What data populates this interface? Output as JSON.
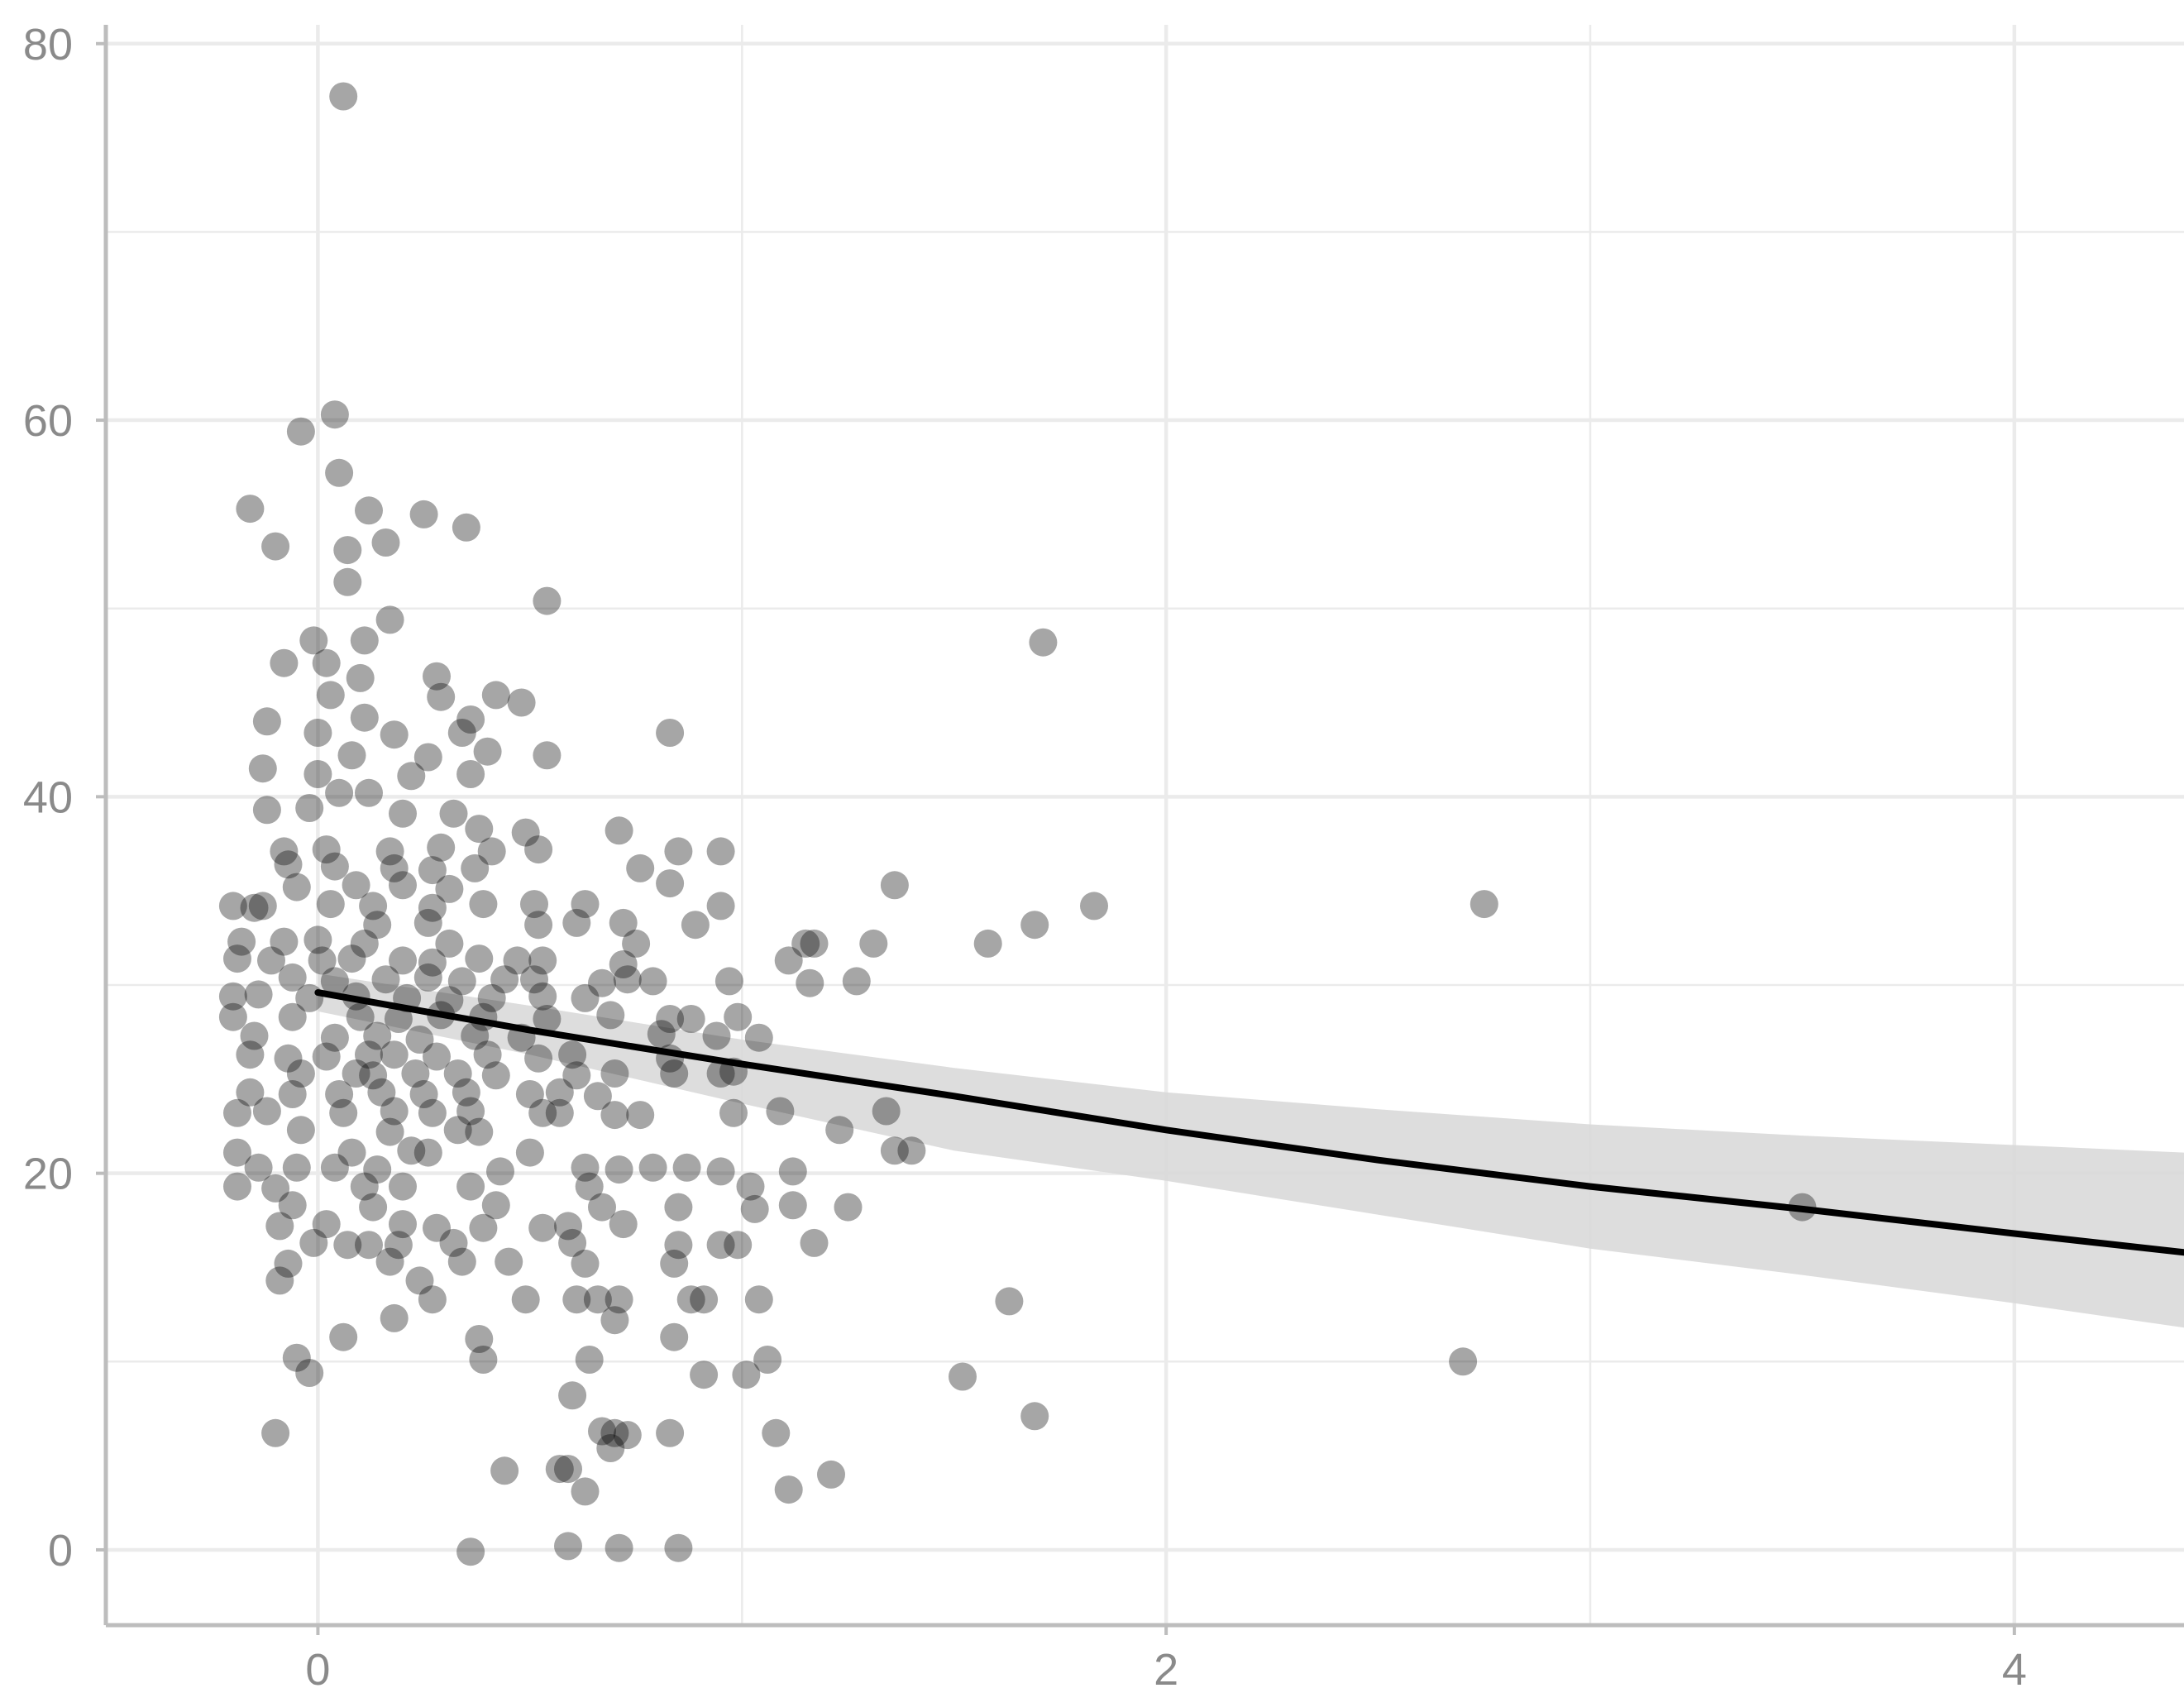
{
  "chart_data": {
    "type": "scatter",
    "title": "",
    "xlabel": "",
    "ylabel": "",
    "xlim": [
      -0.5,
      4.4
    ],
    "ylim": [
      -4,
      81
    ],
    "x_ticks": [
      0,
      2,
      4
    ],
    "x_tick_labels": [
      "0",
      "2",
      "4"
    ],
    "y_ticks": [
      0,
      20,
      40,
      60,
      80
    ],
    "y_tick_labels": [
      "0",
      "20",
      "40",
      "60",
      "80"
    ],
    "x_minor_gridlines": [
      1,
      3
    ],
    "y_minor_gridlines": [
      10,
      30,
      50,
      70
    ],
    "grid": true,
    "legend": "none",
    "colors": {
      "points": "#000000",
      "point_opacity": 0.35,
      "fit_line": "#000000",
      "confidence_band": "#d9d9d9",
      "grid": "#ebebeb",
      "axis": "#bdbdbd",
      "tick_label": "#8a8a8a"
    },
    "fit_line": {
      "type": "smooth",
      "x": [
        0,
        0.5,
        1,
        1.5,
        2,
        2.5,
        3,
        3.5,
        4,
        4.4
      ],
      "y": [
        29.6,
        27.6,
        25.8,
        24.1,
        22.3,
        20.7,
        19.3,
        18.1,
        16.8,
        15.8
      ]
    },
    "confidence_band": {
      "x": [
        0,
        0.5,
        1,
        1.5,
        2,
        2.5,
        3,
        3.5,
        4,
        4.4
      ],
      "lower": [
        28.6,
        26.3,
        23.7,
        21.2,
        19.6,
        17.8,
        16.0,
        14.6,
        13.1,
        11.8
      ],
      "upper": [
        30.6,
        28.9,
        27.1,
        25.6,
        24.3,
        23.4,
        22.6,
        22.0,
        21.5,
        21.1
      ]
    },
    "series": [
      {
        "points": [
          [
            0.06,
            77.2
          ],
          [
            0.04,
            60.3
          ],
          [
            -0.04,
            59.4
          ],
          [
            0.05,
            57.2
          ],
          [
            -0.16,
            55.3
          ],
          [
            0.12,
            55.2
          ],
          [
            0.25,
            55.0
          ],
          [
            0.35,
            54.3
          ],
          [
            -0.1,
            53.3
          ],
          [
            0.07,
            53.1
          ],
          [
            0.16,
            53.5
          ],
          [
            0.07,
            51.4
          ],
          [
            0.54,
            50.4
          ],
          [
            -0.01,
            48.3
          ],
          [
            0.11,
            48.3
          ],
          [
            0.17,
            49.4
          ],
          [
            1.71,
            48.2
          ],
          [
            -0.08,
            47.1
          ],
          [
            0.02,
            47.1
          ],
          [
            0.28,
            46.4
          ],
          [
            0.1,
            46.3
          ],
          [
            0.03,
            45.4
          ],
          [
            0.48,
            45.0
          ],
          [
            0.29,
            45.3
          ],
          [
            0.42,
            45.4
          ],
          [
            -0.12,
            44.0
          ],
          [
            0.11,
            44.2
          ],
          [
            0.36,
            44.1
          ],
          [
            0.83,
            43.4
          ],
          [
            0.0,
            43.4
          ],
          [
            0.18,
            43.3
          ],
          [
            0.34,
            43.4
          ],
          [
            -0.13,
            41.5
          ],
          [
            0.08,
            42.2
          ],
          [
            0.26,
            42.1
          ],
          [
            0.4,
            42.4
          ],
          [
            0.54,
            42.2
          ],
          [
            0.0,
            41.2
          ],
          [
            0.22,
            41.1
          ],
          [
            0.36,
            41.2
          ],
          [
            -0.12,
            39.3
          ],
          [
            -0.02,
            39.4
          ],
          [
            0.05,
            40.2
          ],
          [
            0.12,
            40.2
          ],
          [
            0.2,
            39.1
          ],
          [
            0.32,
            39.1
          ],
          [
            0.38,
            38.3
          ],
          [
            0.49,
            38.1
          ],
          [
            0.71,
            38.2
          ],
          [
            -0.08,
            37.1
          ],
          [
            0.02,
            37.2
          ],
          [
            0.17,
            37.1
          ],
          [
            0.29,
            37.3
          ],
          [
            0.41,
            37.1
          ],
          [
            0.52,
            37.2
          ],
          [
            0.85,
            37.1
          ],
          [
            0.95,
            37.1
          ],
          [
            -0.07,
            36.4
          ],
          [
            0.04,
            36.3
          ],
          [
            0.18,
            36.2
          ],
          [
            0.27,
            36.1
          ],
          [
            0.37,
            36.2
          ],
          [
            0.76,
            36.2
          ],
          [
            0.83,
            35.4
          ],
          [
            1.36,
            35.3
          ],
          [
            -0.05,
            35.2
          ],
          [
            0.09,
            35.3
          ],
          [
            0.2,
            35.3
          ],
          [
            0.31,
            35.1
          ],
          [
            0.51,
            34.3
          ],
          [
            0.63,
            34.3
          ],
          [
            0.95,
            34.2
          ],
          [
            1.83,
            34.2
          ],
          [
            2.75,
            34.3
          ],
          [
            -0.2,
            34.2
          ],
          [
            -0.15,
            34.1
          ],
          [
            -0.13,
            34.2
          ],
          [
            0.03,
            34.3
          ],
          [
            0.13,
            34.2
          ],
          [
            0.27,
            34.1
          ],
          [
            0.39,
            34.3
          ],
          [
            0.61,
            33.3
          ],
          [
            0.72,
            33.3
          ],
          [
            0.89,
            33.2
          ],
          [
            1.69,
            33.2
          ],
          [
            0.14,
            33.2
          ],
          [
            0.26,
            33.3
          ],
          [
            0.52,
            33.2
          ],
          [
            -0.18,
            32.3
          ],
          [
            -0.08,
            32.3
          ],
          [
            0.0,
            32.4
          ],
          [
            0.11,
            32.2
          ],
          [
            0.31,
            32.2
          ],
          [
            0.75,
            32.2
          ],
          [
            1.15,
            32.2
          ],
          [
            1.31,
            32.2
          ],
          [
            1.58,
            32.2
          ],
          [
            -0.19,
            31.4
          ],
          [
            -0.11,
            31.3
          ],
          [
            0.01,
            31.3
          ],
          [
            0.08,
            31.4
          ],
          [
            0.2,
            31.3
          ],
          [
            0.27,
            31.2
          ],
          [
            0.38,
            31.4
          ],
          [
            0.47,
            31.3
          ],
          [
            0.53,
            31.3
          ],
          [
            0.72,
            31.1
          ],
          [
            1.11,
            31.3
          ],
          [
            1.17,
            32.2
          ],
          [
            -0.06,
            30.4
          ],
          [
            0.04,
            30.2
          ],
          [
            0.16,
            30.3
          ],
          [
            0.26,
            30.4
          ],
          [
            0.34,
            30.2
          ],
          [
            0.44,
            30.3
          ],
          [
            0.51,
            30.3
          ],
          [
            0.67,
            30.1
          ],
          [
            0.73,
            30.3
          ],
          [
            0.79,
            30.2
          ],
          [
            0.97,
            30.2
          ],
          [
            1.16,
            30.1
          ],
          [
            1.27,
            30.2
          ],
          [
            -0.2,
            29.4
          ],
          [
            -0.14,
            29.5
          ],
          [
            -0.02,
            29.3
          ],
          [
            0.09,
            29.4
          ],
          [
            0.21,
            29.3
          ],
          [
            0.31,
            29.2
          ],
          [
            0.41,
            29.3
          ],
          [
            0.53,
            29.4
          ],
          [
            0.63,
            29.3
          ],
          [
            -0.2,
            28.3
          ],
          [
            -0.06,
            28.3
          ],
          [
            0.1,
            28.3
          ],
          [
            0.19,
            28.2
          ],
          [
            0.29,
            28.4
          ],
          [
            0.39,
            28.3
          ],
          [
            0.54,
            28.2
          ],
          [
            0.69,
            28.4
          ],
          [
            0.83,
            28.2
          ],
          [
            0.88,
            28.2
          ],
          [
            0.99,
            28.3
          ],
          [
            -0.15,
            27.3
          ],
          [
            0.04,
            27.2
          ],
          [
            0.14,
            27.3
          ],
          [
            0.24,
            27.1
          ],
          [
            0.37,
            27.3
          ],
          [
            0.48,
            27.2
          ],
          [
            0.81,
            27.4
          ],
          [
            0.94,
            27.3
          ],
          [
            1.04,
            27.2
          ],
          [
            -0.16,
            26.3
          ],
          [
            -0.07,
            26.1
          ],
          [
            0.02,
            26.2
          ],
          [
            0.12,
            26.3
          ],
          [
            0.18,
            26.3
          ],
          [
            0.28,
            26.2
          ],
          [
            0.4,
            26.3
          ],
          [
            0.52,
            26.1
          ],
          [
            0.6,
            26.3
          ],
          [
            0.83,
            26.1
          ],
          [
            0.09,
            25.3
          ],
          [
            -0.04,
            25.3
          ],
          [
            0.13,
            25.2
          ],
          [
            0.23,
            25.3
          ],
          [
            0.33,
            25.3
          ],
          [
            0.42,
            25.2
          ],
          [
            0.61,
            25.2
          ],
          [
            0.7,
            25.3
          ],
          [
            0.84,
            25.3
          ],
          [
            0.95,
            25.3
          ],
          [
            0.98,
            25.4
          ],
          [
            -0.16,
            24.3
          ],
          [
            -0.06,
            24.2
          ],
          [
            0.05,
            24.2
          ],
          [
            0.15,
            24.3
          ],
          [
            0.25,
            24.2
          ],
          [
            0.35,
            24.3
          ],
          [
            0.5,
            24.2
          ],
          [
            0.57,
            24.3
          ],
          [
            0.66,
            24.1
          ],
          [
            -0.19,
            23.2
          ],
          [
            -0.12,
            23.3
          ],
          [
            0.06,
            23.2
          ],
          [
            0.18,
            23.3
          ],
          [
            0.27,
            23.2
          ],
          [
            0.36,
            23.3
          ],
          [
            0.53,
            23.2
          ],
          [
            0.57,
            23.2
          ],
          [
            0.7,
            23.1
          ],
          [
            0.76,
            23.1
          ],
          [
            0.98,
            23.2
          ],
          [
            1.09,
            23.3
          ],
          [
            1.34,
            23.3
          ],
          [
            -0.04,
            22.3
          ],
          [
            0.17,
            22.2
          ],
          [
            0.33,
            22.3
          ],
          [
            0.38,
            22.2
          ],
          [
            1.23,
            22.3
          ],
          [
            0.08,
            21.1
          ],
          [
            0.22,
            21.2
          ],
          [
            0.5,
            21.1
          ],
          [
            0.26,
            21.1
          ],
          [
            1.36,
            21.2
          ],
          [
            1.4,
            21.2
          ],
          [
            -0.19,
            21.1
          ],
          [
            -0.14,
            20.3
          ],
          [
            -0.05,
            20.3
          ],
          [
            0.04,
            20.3
          ],
          [
            0.14,
            20.2
          ],
          [
            0.43,
            20.1
          ],
          [
            0.63,
            20.3
          ],
          [
            0.71,
            20.2
          ],
          [
            0.79,
            20.3
          ],
          [
            0.87,
            20.3
          ],
          [
            0.95,
            20.1
          ],
          [
            1.12,
            20.1
          ],
          [
            -0.19,
            19.3
          ],
          [
            -0.1,
            19.2
          ],
          [
            0.11,
            19.3
          ],
          [
            0.2,
            19.3
          ],
          [
            0.36,
            19.3
          ],
          [
            0.64,
            19.3
          ],
          [
            1.02,
            19.3
          ],
          [
            -0.06,
            18.3
          ],
          [
            0.13,
            18.2
          ],
          [
            0.42,
            18.3
          ],
          [
            0.67,
            18.2
          ],
          [
            0.85,
            18.2
          ],
          [
            1.03,
            18.1
          ],
          [
            1.12,
            18.3
          ],
          [
            1.25,
            18.2
          ],
          [
            3.5,
            18.2
          ],
          [
            -0.09,
            17.2
          ],
          [
            0.02,
            17.3
          ],
          [
            0.2,
            17.3
          ],
          [
            0.28,
            17.1
          ],
          [
            0.39,
            17.1
          ],
          [
            0.53,
            17.1
          ],
          [
            0.59,
            17.2
          ],
          [
            0.72,
            17.3
          ],
          [
            0.6,
            16.3
          ],
          [
            -0.01,
            16.3
          ],
          [
            0.07,
            16.2
          ],
          [
            0.12,
            16.2
          ],
          [
            0.19,
            16.2
          ],
          [
            0.32,
            16.3
          ],
          [
            0.85,
            16.2
          ],
          [
            0.95,
            16.2
          ],
          [
            0.99,
            16.2
          ],
          [
            1.17,
            16.3
          ],
          [
            -0.07,
            15.2
          ],
          [
            0.17,
            15.3
          ],
          [
            0.34,
            15.3
          ],
          [
            0.45,
            15.3
          ],
          [
            0.63,
            15.2
          ],
          [
            0.84,
            15.2
          ],
          [
            -0.09,
            14.3
          ],
          [
            0.24,
            14.3
          ],
          [
            0.27,
            13.3
          ],
          [
            0.49,
            13.3
          ],
          [
            0.61,
            13.3
          ],
          [
            0.66,
            13.3
          ],
          [
            0.71,
            13.3
          ],
          [
            0.88,
            13.3
          ],
          [
            0.91,
            13.3
          ],
          [
            1.04,
            13.3
          ],
          [
            1.63,
            13.2
          ],
          [
            0.18,
            12.3
          ],
          [
            0.7,
            12.2
          ],
          [
            0.06,
            11.3
          ],
          [
            0.38,
            11.2
          ],
          [
            0.84,
            11.3
          ],
          [
            -0.05,
            10.2
          ],
          [
            0.39,
            10.1
          ],
          [
            0.64,
            10.1
          ],
          [
            1.06,
            10.1
          ],
          [
            2.7,
            10.0
          ],
          [
            -0.02,
            9.4
          ],
          [
            0.91,
            9.3
          ],
          [
            1.01,
            9.3
          ],
          [
            1.52,
            9.2
          ],
          [
            0.6,
            8.2
          ],
          [
            1.69,
            7.1
          ],
          [
            -0.1,
            6.2
          ],
          [
            0.67,
            6.3
          ],
          [
            0.7,
            6.2
          ],
          [
            0.73,
            6.1
          ],
          [
            0.83,
            6.2
          ],
          [
            1.08,
            6.2
          ],
          [
            0.69,
            5.4
          ],
          [
            0.44,
            4.2
          ],
          [
            0.57,
            4.3
          ],
          [
            0.59,
            4.3
          ],
          [
            1.21,
            4.0
          ],
          [
            1.11,
            3.2
          ],
          [
            0.63,
            3.1
          ],
          [
            0.36,
            -0.1
          ],
          [
            0.59,
            0.2
          ],
          [
            0.71,
            0.1
          ],
          [
            0.85,
            0.1
          ]
        ]
      }
    ]
  }
}
